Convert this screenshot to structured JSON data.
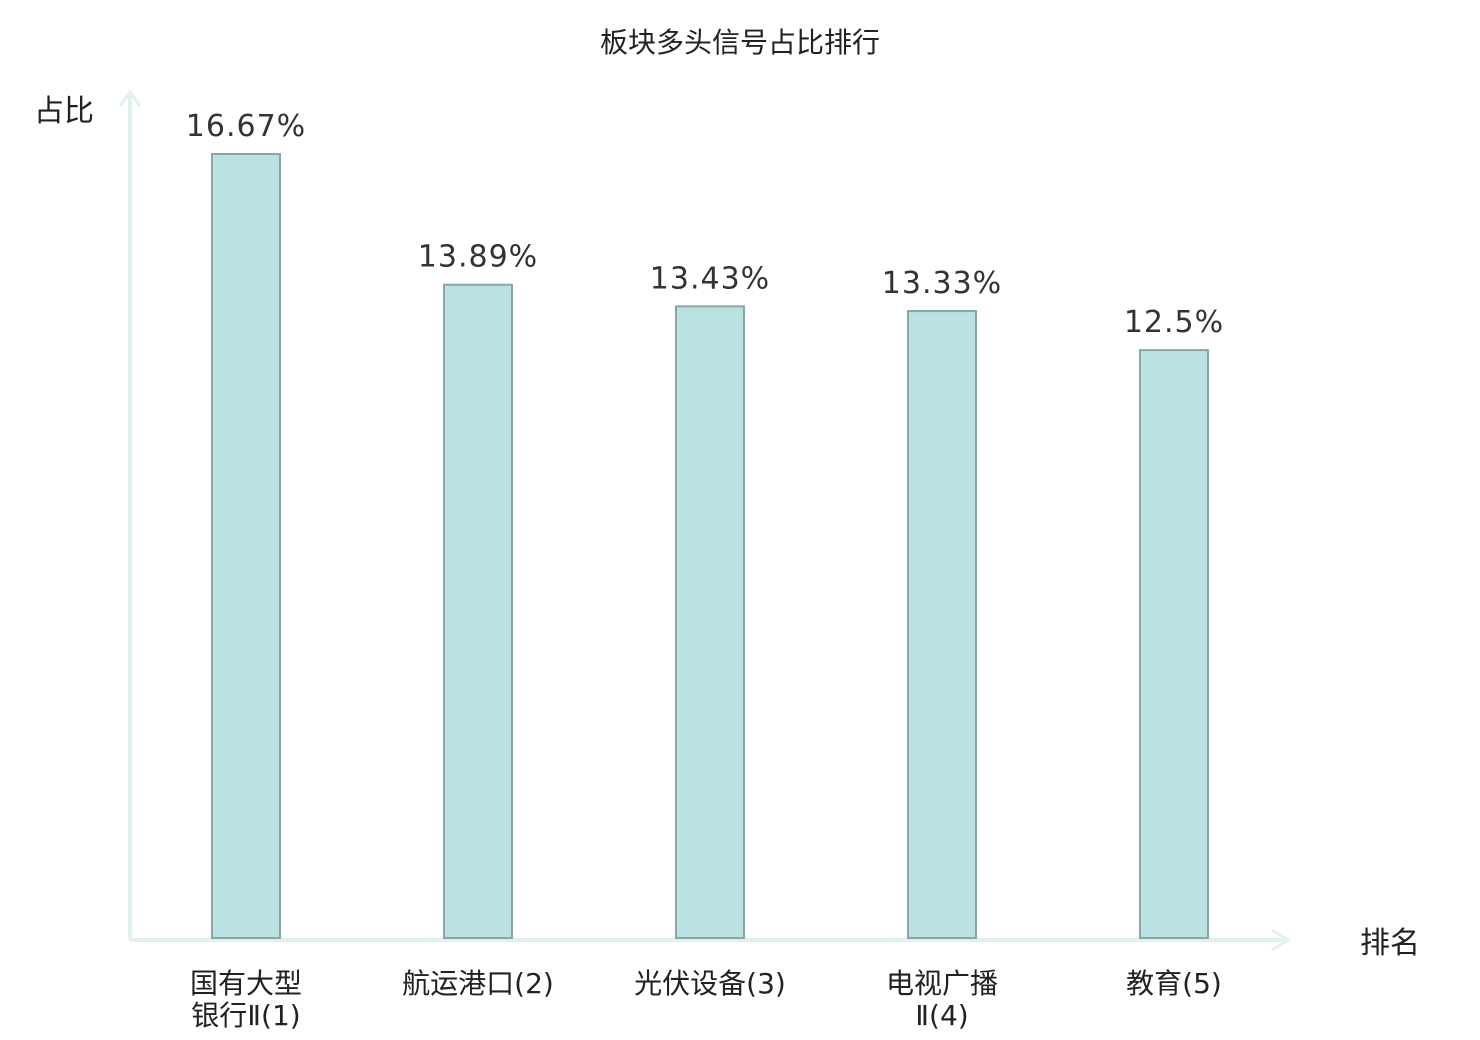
{
  "chart_data": {
    "type": "bar",
    "title": "板块多头信号占比排行",
    "ylabel": "占比",
    "xlabel": "排名",
    "categories": [
      {
        "lines": [
          "国有大型",
          "银行Ⅱ(1)"
        ],
        "highlight": false
      },
      {
        "lines": [
          "航运港口(2)"
        ],
        "highlight": false
      },
      {
        "lines": [
          "光伏设备(3)"
        ],
        "highlight": false
      },
      {
        "lines": [
          "电视广播",
          "Ⅱ(4)"
        ],
        "highlight": false
      },
      {
        "lines": [
          "教育(5)"
        ],
        "highlight": true
      }
    ],
    "values": [
      16.67,
      13.89,
      13.43,
      13.33,
      12.5
    ],
    "value_labels": [
      "16.67%",
      "13.89%",
      "13.43%",
      "13.33%",
      "12.5%"
    ],
    "ylim": [
      0,
      16.67
    ],
    "grid": false,
    "colors": {
      "bar_fill": "#bce1e2",
      "bar_stroke": "#8aa5a5",
      "axis": "#e0f2ef",
      "highlight_text": "#d61a1a",
      "text": "#222222"
    }
  }
}
